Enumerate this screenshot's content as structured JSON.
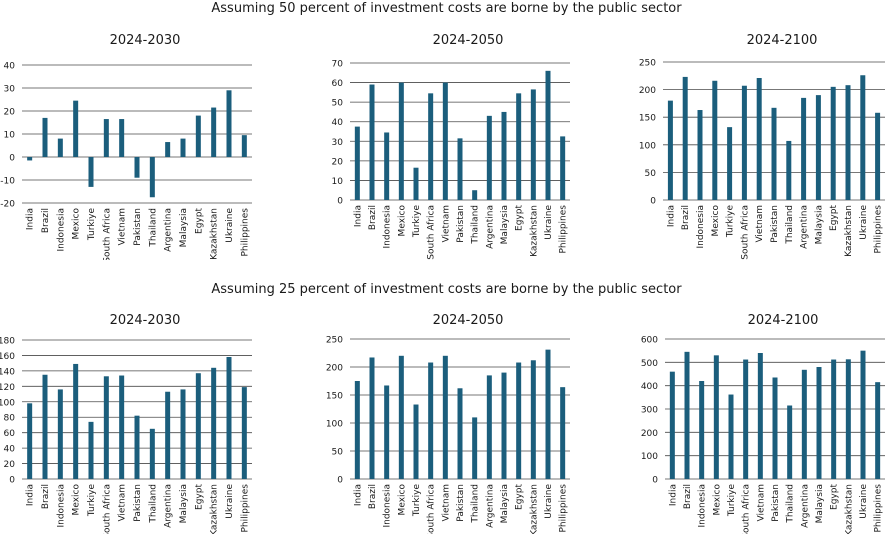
{
  "top_title": "Assuming 50 percent of investment costs are borne by the public sector",
  "bottom_title": "Assuming 25 percent of investment costs are borne by the public sector",
  "colors": {
    "bar": "#1b5e7c",
    "grid": "#4a4a4a",
    "text": "#1a1a1a"
  },
  "chart_data": [
    {
      "type": "bar",
      "title": "2024-2030",
      "group": "50 percent public",
      "categories": [
        "India",
        "Brazil",
        "Indonesia",
        "Mexico",
        "Turkiye",
        "South Africa",
        "Vietnam",
        "Pakistan",
        "Thailand",
        "Argentina",
        "Malaysia",
        "Egypt",
        "Kazakhstan",
        "Ukraine",
        "Philippines"
      ],
      "values": [
        -1.5,
        17,
        8,
        24.5,
        -13,
        16.5,
        16.5,
        -9,
        -17.5,
        6.5,
        8,
        18,
        21.5,
        29,
        9.5
      ],
      "ylim": [
        -20,
        40
      ],
      "yticks": [
        -20,
        -10,
        0,
        10,
        20,
        30,
        40
      ]
    },
    {
      "type": "bar",
      "title": "2024-2050",
      "group": "50 percent public",
      "categories": [
        "India",
        "Brazil",
        "Indonesia",
        "Mexico",
        "Turkiye",
        "South Africa",
        "Vietnam",
        "Pakistan",
        "Thailand",
        "Argentina",
        "Malaysia",
        "Egypt",
        "Kazakhstan",
        "Ukraine",
        "Philippines"
      ],
      "values": [
        37.5,
        59,
        34.5,
        60,
        16.5,
        54.5,
        60,
        31.5,
        5,
        43,
        45,
        54.5,
        56.5,
        66,
        32.5
      ],
      "ylim": [
        0,
        70
      ],
      "yticks": [
        0,
        10,
        20,
        30,
        40,
        50,
        60,
        70
      ]
    },
    {
      "type": "bar",
      "title": "2024-2100",
      "group": "50 percent public",
      "categories": [
        "India",
        "Brazil",
        "Indonesia",
        "Mexico",
        "Turkiye",
        "South Africa",
        "Vietnam",
        "Pakistan",
        "Thailand",
        "Argentina",
        "Malaysia",
        "Egypt",
        "Kazakhstan",
        "Ukraine",
        "Philippines"
      ],
      "values": [
        180,
        223,
        163,
        216,
        132,
        207,
        221,
        167,
        107,
        185,
        190,
        205,
        208,
        226,
        158
      ],
      "ylim": [
        0,
        250
      ],
      "yticks": [
        0,
        50,
        100,
        150,
        200,
        250
      ]
    },
    {
      "type": "bar",
      "title": "2024-2030",
      "group": "25 percent public",
      "categories": [
        "India",
        "Brazil",
        "Indonesia",
        "Mexico",
        "Turkiye",
        "South Africa",
        "Vietnam",
        "Pakistan",
        "Thailand",
        "Argentina",
        "Malaysia",
        "Egypt",
        "Kazakhstan",
        "Ukraine",
        "Philippines"
      ],
      "values": [
        98,
        135,
        116,
        149,
        74,
        133,
        134,
        82,
        65,
        113,
        116,
        137,
        144,
        158,
        119
      ],
      "ylim": [
        0,
        180
      ],
      "yticks": [
        0,
        20,
        40,
        60,
        80,
        100,
        120,
        140,
        160,
        180
      ]
    },
    {
      "type": "bar",
      "title": "2024-2050",
      "group": "25 percent public",
      "categories": [
        "India",
        "Brazil",
        "Indonesia",
        "Mexico",
        "Turkiye",
        "South Africa",
        "Vietnam",
        "Pakistan",
        "Thailand",
        "Argentina",
        "Malaysia",
        "Egypt",
        "Kazakhstan",
        "Ukraine",
        "Philippines"
      ],
      "values": [
        175,
        217,
        167,
        220,
        133,
        208,
        220,
        162,
        110,
        185,
        190,
        208,
        212,
        231,
        164
      ],
      "ylim": [
        0,
        250
      ],
      "yticks": [
        0,
        50,
        100,
        150,
        200,
        250
      ]
    },
    {
      "type": "bar",
      "title": "2024-2100",
      "group": "25 percent public",
      "categories": [
        "India",
        "Brazil",
        "Indonesia",
        "Mexico",
        "Turkiye",
        "South Africa",
        "Vietnam",
        "Pakistan",
        "Thailand",
        "Argentina",
        "Malaysia",
        "Egypt",
        "Kazakhstan",
        "Ukraine",
        "Philippines"
      ],
      "values": [
        460,
        545,
        420,
        530,
        362,
        512,
        540,
        435,
        315,
        468,
        480,
        512,
        513,
        550,
        415
      ],
      "ylim": [
        0,
        600
      ],
      "yticks": [
        0,
        100,
        200,
        300,
        400,
        500,
        600
      ]
    }
  ]
}
